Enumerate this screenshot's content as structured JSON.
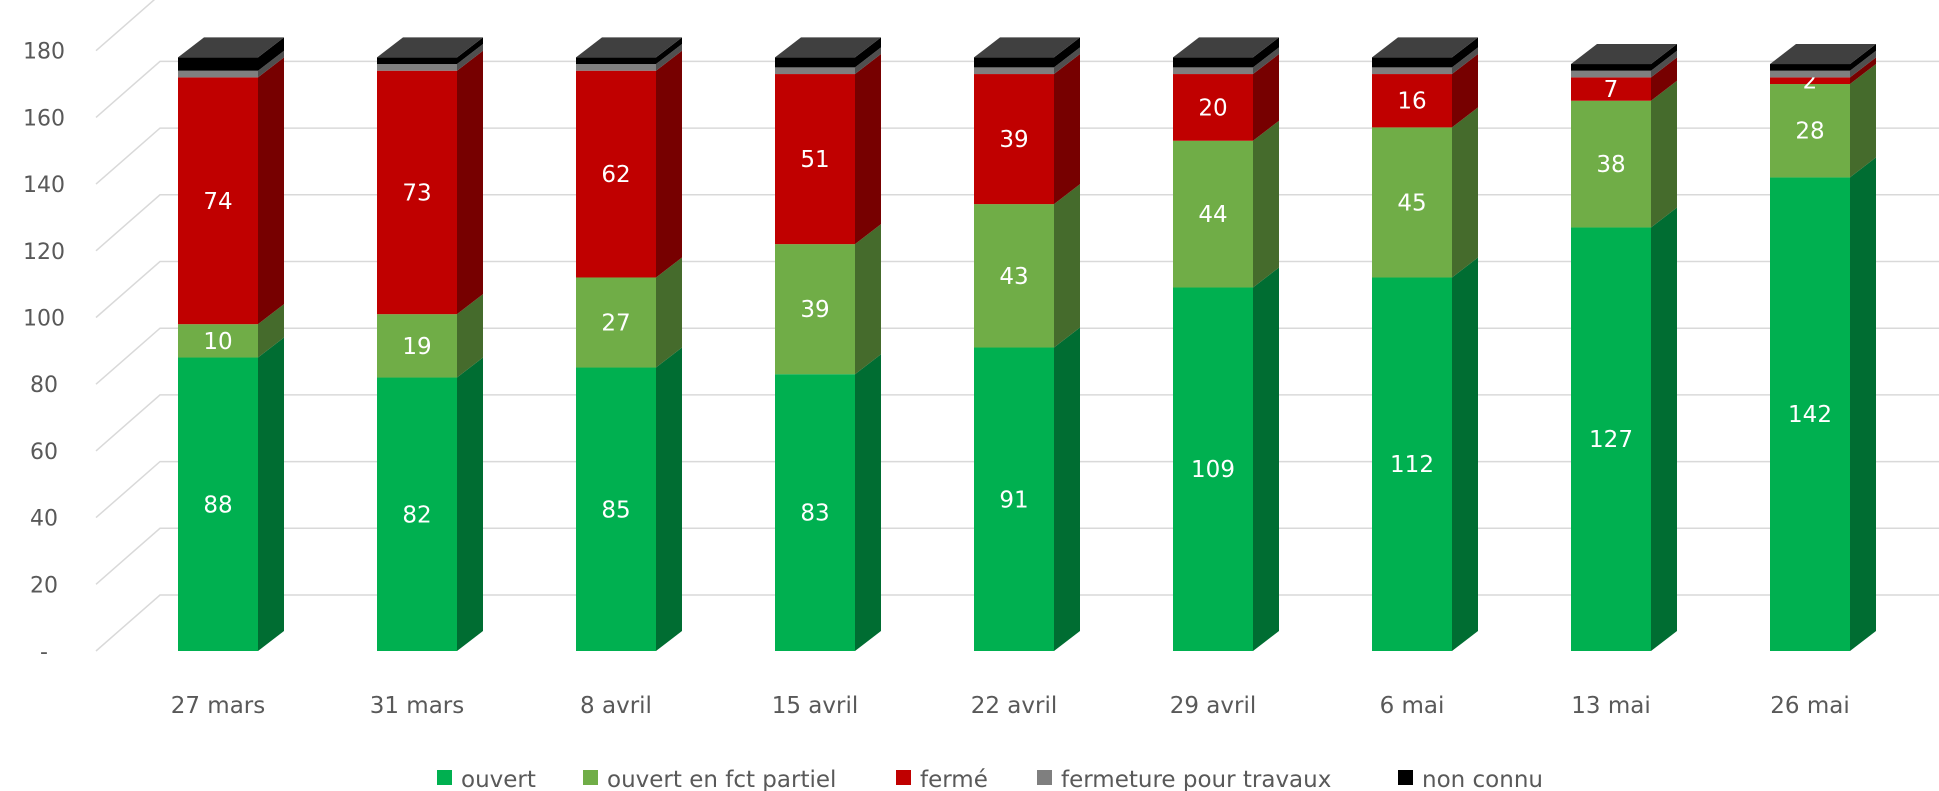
{
  "chart_data": {
    "type": "bar",
    "stacked": true,
    "style": "3d-column",
    "categories": [
      "27 mars",
      "31 mars",
      "8 avril",
      "15 avril",
      "22 avril",
      "29 avril",
      "6 mai",
      "13 mai",
      "26 mai"
    ],
    "series": [
      {
        "name": "ouvert",
        "color": "#00b050",
        "values": [
          88,
          82,
          85,
          83,
          91,
          109,
          112,
          127,
          142
        ]
      },
      {
        "name": "ouvert en fct partiel",
        "color": "#70ad47",
        "values": [
          10,
          19,
          27,
          39,
          43,
          44,
          45,
          38,
          28
        ]
      },
      {
        "name": "fermé",
        "color": "#c00000",
        "values": [
          74,
          73,
          62,
          51,
          39,
          20,
          16,
          7,
          2
        ]
      },
      {
        "name": "fermeture pour travaux",
        "color": "#7f7f7f",
        "values": [
          2,
          2,
          2,
          2,
          2,
          2,
          2,
          2,
          2
        ]
      },
      {
        "name": "non connu",
        "color": "#000000",
        "values": [
          4,
          2,
          2,
          3,
          3,
          3,
          3,
          2,
          2
        ]
      }
    ],
    "data_labels": [
      [
        88,
        82,
        85,
        83,
        91,
        109,
        112,
        127,
        142
      ],
      [
        10,
        19,
        27,
        39,
        43,
        44,
        45,
        38,
        28
      ],
      [
        74,
        73,
        62,
        51,
        39,
        20,
        16,
        7,
        2
      ],
      null,
      null
    ],
    "ylim": [
      0,
      180
    ],
    "yticks": [
      0,
      20,
      40,
      60,
      80,
      100,
      120,
      140,
      160,
      180
    ],
    "ytick_labels": [
      "-",
      "20",
      "40",
      "60",
      "80",
      "100",
      "120",
      "140",
      "160",
      "180"
    ],
    "grid": true,
    "legend_position": "bottom",
    "xlabel": "",
    "ylabel": "",
    "title": ""
  }
}
